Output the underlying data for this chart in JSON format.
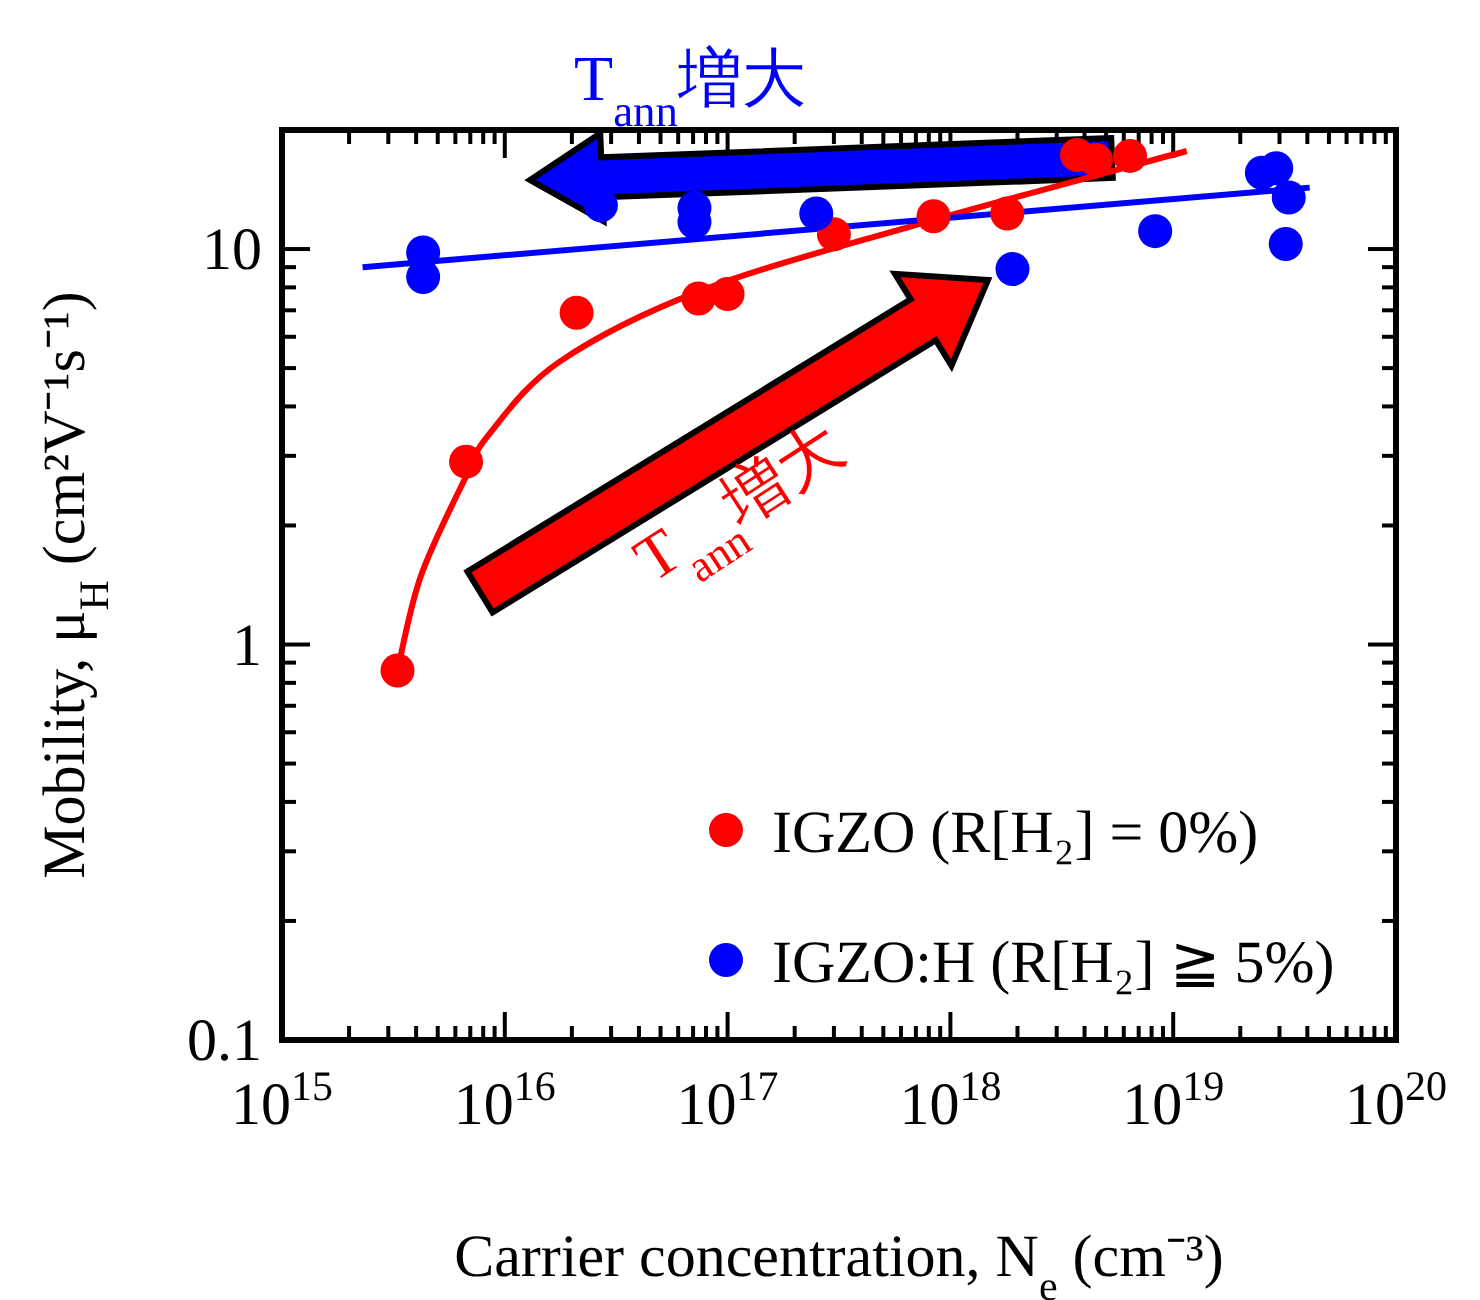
{
  "chart_data": {
    "type": "scatter",
    "xlabel": "Carrier concentration, N$_{e}$ (cm⁻³)",
    "ylabel": "Mobility, μ$_{H}$ (cm²V⁻¹s⁻¹)",
    "log": "xy",
    "xlim": [
      1000000000000000.0,
      1e+20
    ],
    "ylim": [
      0.1,
      20
    ],
    "xticks": [
      {
        "value": 1000000000000000.0,
        "label": "10$^{15}$"
      },
      {
        "value": 1e+16,
        "label": "10$^{16}$"
      },
      {
        "value": 1e+17,
        "label": "10$^{17}$"
      },
      {
        "value": 1e+18,
        "label": "10$^{18}$"
      },
      {
        "value": 1e+19,
        "label": "10$^{19}$"
      },
      {
        "value": 1e+20,
        "label": "10$^{20}$"
      }
    ],
    "yticks": [
      0.1,
      1,
      10
    ],
    "marker": "circle",
    "legend": "bottom right",
    "annotations": [
      "T$_{ann}$増大",
      "T$_{ann}$増大"
    ],
    "series": [
      {
        "name": "IGZO (R[H₂] = 0%)",
        "color": "#ff0000",
        "x": [
          3300000000000000.0,
          6700000000000000.0,
          2.1e+16,
          7.4e+16,
          1e+17,
          3e+17,
          8.4e+17,
          1.8e+18,
          3.7e+18,
          4.5e+18,
          6.4e+18
        ],
        "values": [
          0.86,
          2.9,
          6.9,
          7.5,
          7.7,
          10.9,
          12.1,
          12.3,
          17.3,
          16.8,
          17.2
        ]
      },
      {
        "name": "IGZO:H (R[H₂] ≧ 5%)",
        "color": "#0000ff",
        "x": [
          4300000000000000.0,
          4300000000000000.0,
          2.7e+16,
          7.1e+16,
          7.1e+16,
          2.5e+17,
          1.9e+18,
          8.3e+18,
          2.5e+19,
          2.9e+19,
          3.3e+19,
          3.2e+19
        ],
        "values": [
          9.8,
          8.5,
          12.9,
          12.7,
          11.7,
          12.3,
          8.9,
          11.1,
          15.6,
          16.0,
          13.5,
          10.3
        ]
      },
      {
        "color": "#ff0000",
        "type": "line",
        "marker": "none",
        "x": [
          3300000000000000.0,
          4200000000000000.0,
          6700000000000000.0,
          8500000000000000.0,
          1.77e+16,
          7.6e+16,
          6.6e+17,
          1.15e+19
        ],
        "values": [
          0.86,
          1.49,
          2.66,
          3.4,
          5.2,
          7.85,
          11.4,
          17.7
        ]
      },
      {
        "color": "#0000ff",
        "type": "line",
        "marker": "none",
        "x": [
          2300000000000000.0,
          4.1e+19
        ],
        "values": [
          9.0,
          14.3
        ]
      }
    ]
  }
}
